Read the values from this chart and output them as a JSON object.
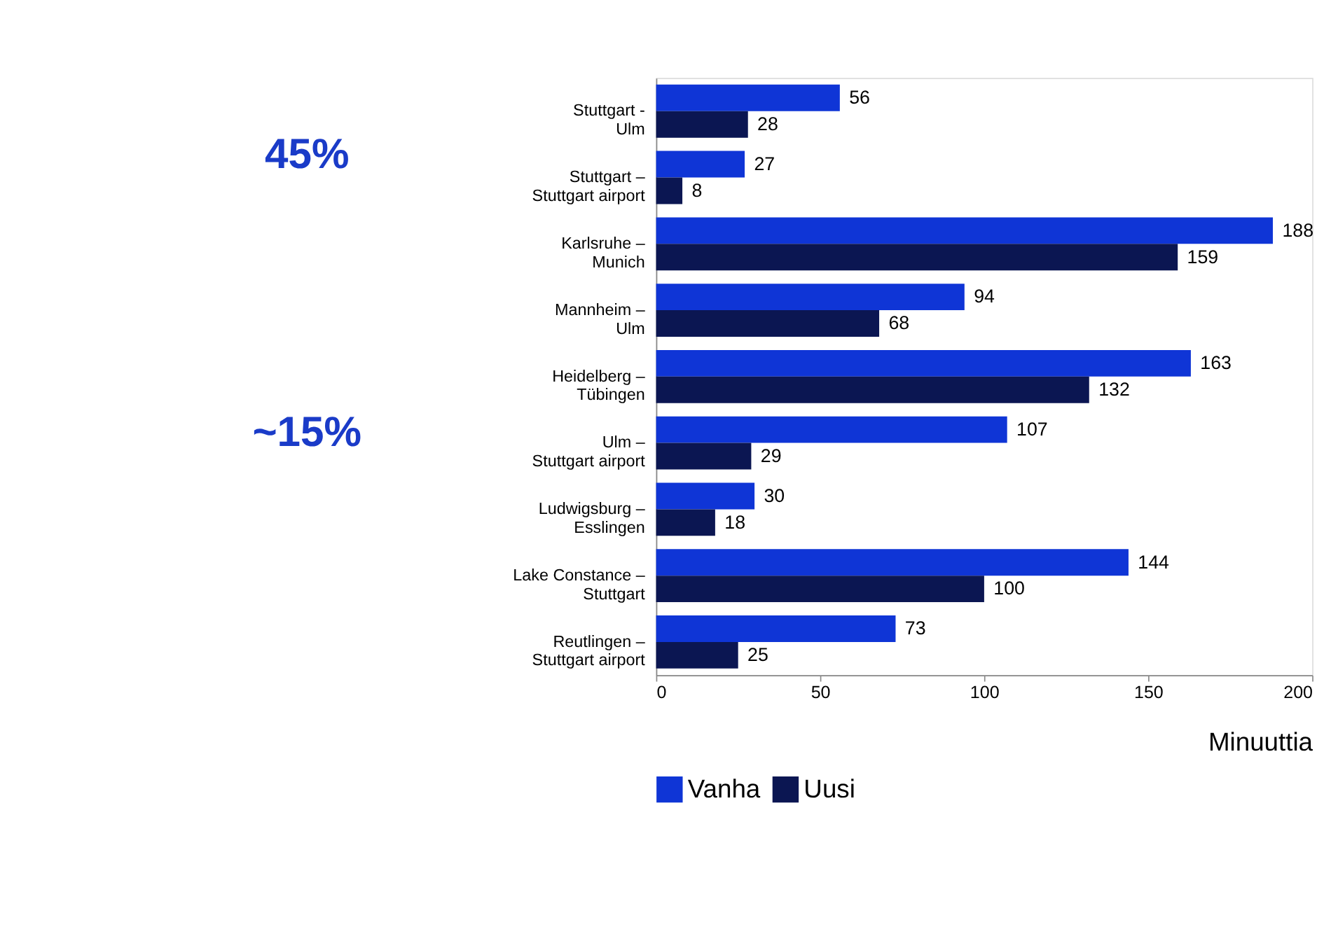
{
  "chart_data": {
    "type": "bar",
    "orientation": "horizontal",
    "xlabel": "Minuuttia",
    "categories": [
      "Stuttgart -\nUlm",
      "Stuttgart –\nStuttgart airport",
      "Karlsruhe –\nMunich",
      "Mannheim –\nUlm",
      "Heidelberg –\nTübingen",
      "Ulm –\nStuttgart airport",
      "Ludwigsburg –\nEsslingen",
      "Lake Constance –\nStuttgart",
      "Reutlingen –\nStuttgart airport"
    ],
    "series": [
      {
        "name": "Vanha",
        "color": "#0f35d6",
        "values": [
          56,
          27,
          188,
          94,
          163,
          107,
          30,
          144,
          73
        ]
      },
      {
        "name": "Uusi",
        "color": "#0b1652",
        "values": [
          28,
          8,
          159,
          68,
          132,
          29,
          18,
          100,
          25
        ]
      }
    ],
    "xlim": [
      0,
      200
    ],
    "xticks": [
      0,
      50,
      100,
      150,
      200
    ],
    "grid": false,
    "legend": "bottom",
    "data_labels": true,
    "annotations": [
      "45%",
      "~15%"
    ]
  }
}
